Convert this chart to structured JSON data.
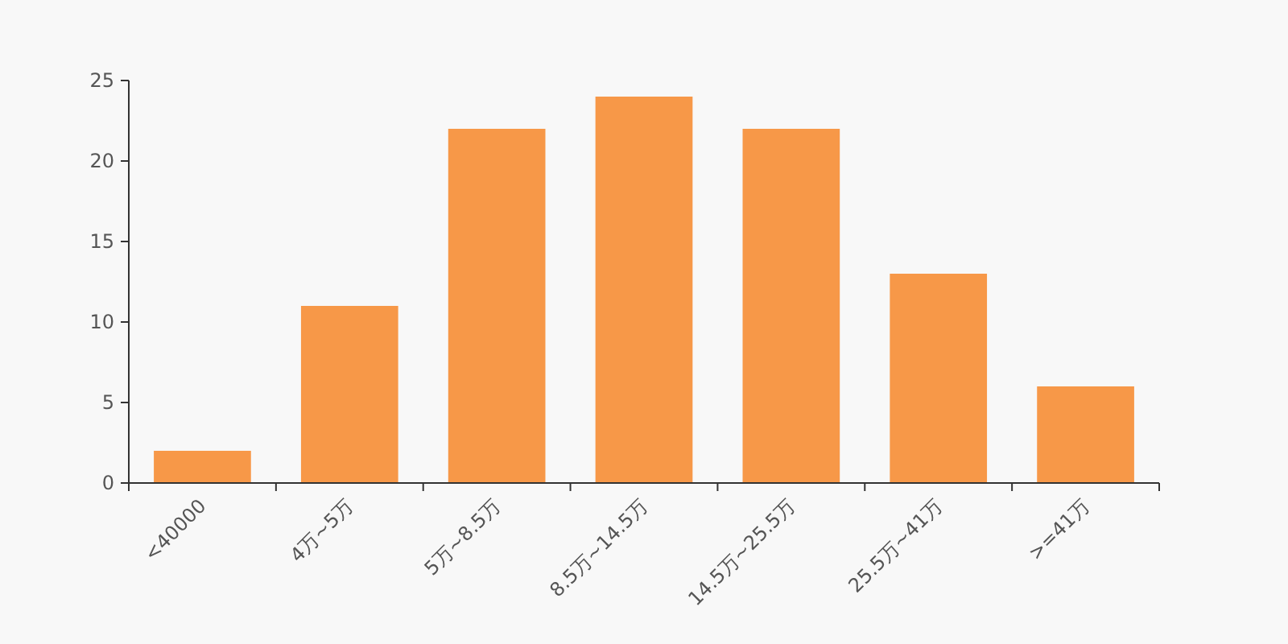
{
  "chart_data": {
    "type": "bar",
    "categories": [
      "<40000",
      "4万~5万",
      "5万~8.5万",
      "8.5万~14.5万",
      "14.5万~25.5万",
      "25.5万~41万",
      ">=41万"
    ],
    "values": [
      2,
      11,
      22,
      24,
      22,
      13,
      6
    ],
    "color": "#f79848",
    "ylim": [
      0,
      25
    ],
    "yticks": [
      0,
      5,
      10,
      15,
      20,
      25
    ],
    "grid": false
  }
}
